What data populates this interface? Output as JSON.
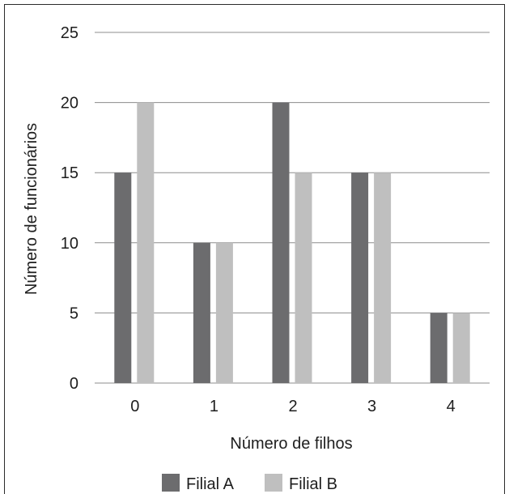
{
  "chart_data": {
    "type": "bar",
    "title": "",
    "xlabel": "Número de filhos",
    "ylabel": "Número de funcionários",
    "categories": [
      "0",
      "1",
      "2",
      "3",
      "4"
    ],
    "series": [
      {
        "name": "Filial A",
        "color": "#6c6c6e",
        "values": [
          15,
          10,
          20,
          15,
          5
        ]
      },
      {
        "name": "Filial B",
        "color": "#bfbfbf",
        "values": [
          20,
          10,
          15,
          15,
          5
        ]
      }
    ],
    "ylim": [
      0,
      25
    ],
    "yticks": [
      "0",
      "5",
      "10",
      "15",
      "20",
      "25"
    ],
    "grid": true,
    "legend_position": "bottom"
  }
}
